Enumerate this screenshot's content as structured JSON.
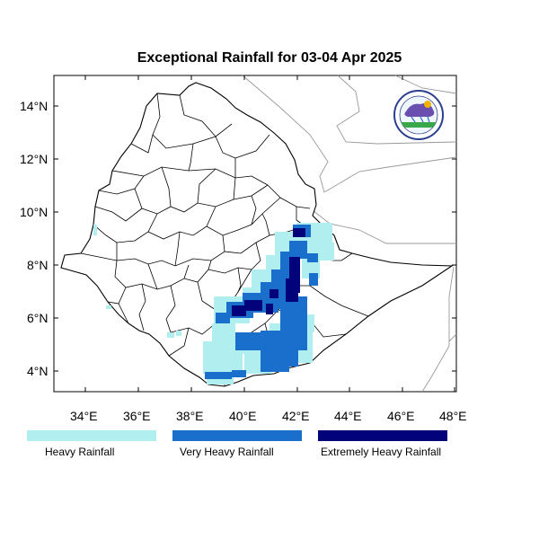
{
  "title": "Exceptional Rainfall for 03-04 Apr 2025",
  "axes": {
    "lat_labels": [
      "14°N",
      "12°N",
      "10°N",
      "8°N",
      "6°N",
      "4°N"
    ],
    "lon_labels": [
      "34°E",
      "36°E",
      "38°E",
      "40°E",
      "42°E",
      "44°E",
      "46°E",
      "48°E"
    ]
  },
  "legend": [
    {
      "label": "Heavy Rainfall",
      "color": "#b0eef0"
    },
    {
      "label": "Very Heavy Rainfall",
      "color": "#1a6fcc"
    },
    {
      "label": "Extremely Heavy Rainfall",
      "color": "#02027a"
    }
  ],
  "logo": {
    "text": "Ethiopian Meteorology Institute",
    "icon": "meteorology-logo-icon"
  }
}
